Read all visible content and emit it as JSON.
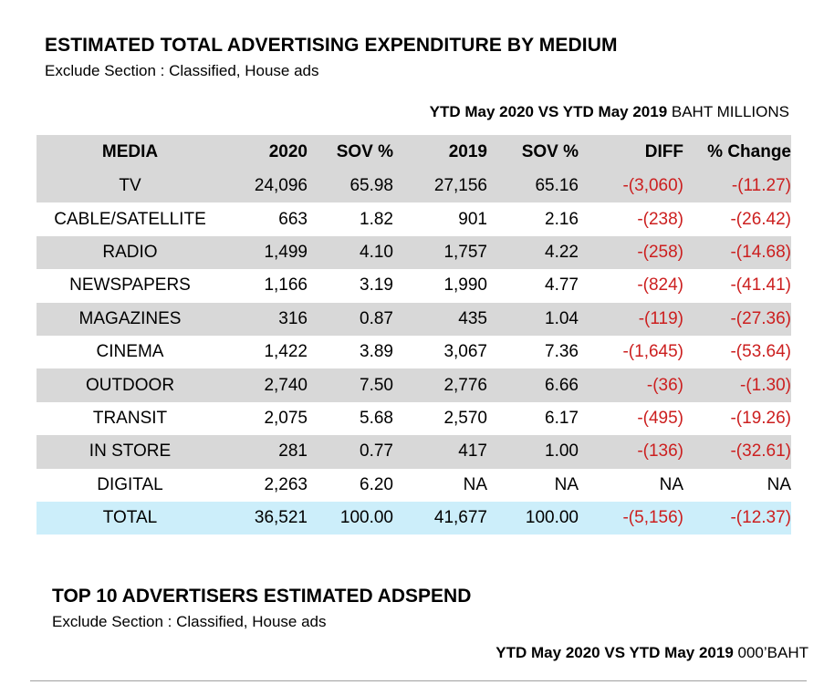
{
  "section1": {
    "title": "ESTIMATED TOTAL ADVERTISING EXPENDITURE BY MEDIUM",
    "subtitle": "Exclude Section : Classified, House ads",
    "period_bold": "YTD May 2020 VS YTD May 2019",
    "period_unit": " BAHT MILLIONS",
    "headers": [
      "MEDIA",
      "2020",
      "SOV %",
      "2019",
      "SOV %",
      "DIFF",
      "% Change"
    ],
    "rows": [
      {
        "media": "TV",
        "v2020": "24,096",
        "sov2020": "65.98",
        "v2019": "27,156",
        "sov2019": "65.16",
        "diff": "-(3,060)",
        "pct": "-(11.27)"
      },
      {
        "media": "CABLE/SATELLITE",
        "v2020": "663",
        "sov2020": "1.82",
        "v2019": "901",
        "sov2019": "2.16",
        "diff": "-(238)",
        "pct": "-(26.42)"
      },
      {
        "media": "RADIO",
        "v2020": "1,499",
        "sov2020": "4.10",
        "v2019": "1,757",
        "sov2019": "4.22",
        "diff": "-(258)",
        "pct": "-(14.68)"
      },
      {
        "media": "NEWSPAPERS",
        "v2020": "1,166",
        "sov2020": "3.19",
        "v2019": "1,990",
        "sov2019": "4.77",
        "diff": "-(824)",
        "pct": "-(41.41)"
      },
      {
        "media": "MAGAZINES",
        "v2020": "316",
        "sov2020": "0.87",
        "v2019": "435",
        "sov2019": "1.04",
        "diff": "-(119)",
        "pct": "-(27.36)"
      },
      {
        "media": "CINEMA",
        "v2020": "1,422",
        "sov2020": "3.89",
        "v2019": "3,067",
        "sov2019": "7.36",
        "diff": "-(1,645)",
        "pct": "-(53.64)"
      },
      {
        "media": "OUTDOOR",
        "v2020": "2,740",
        "sov2020": "7.50",
        "v2019": "2,776",
        "sov2019": "6.66",
        "diff": "-(36)",
        "pct": "-(1.30)"
      },
      {
        "media": "TRANSIT",
        "v2020": "2,075",
        "sov2020": "5.68",
        "v2019": "2,570",
        "sov2019": "6.17",
        "diff": "-(495)",
        "pct": "-(19.26)"
      },
      {
        "media": "IN STORE",
        "v2020": "281",
        "sov2020": "0.77",
        "v2019": "417",
        "sov2019": "1.00",
        "diff": "-(136)",
        "pct": "-(32.61)"
      },
      {
        "media": "DIGITAL",
        "v2020": "2,263",
        "sov2020": "6.20",
        "v2019": "NA",
        "sov2019": "NA",
        "diff": "NA",
        "pct": "NA"
      }
    ],
    "total": {
      "media": "TOTAL",
      "v2020": "36,521",
      "sov2020": "100.00",
      "v2019": "41,677",
      "sov2019": "100.00",
      "diff": "-(5,156)",
      "pct": "-(12.37)"
    },
    "colors": {
      "shade": "#d8d8d8",
      "total": "#cceefa",
      "negative": "#cc1f1f"
    }
  },
  "section2": {
    "title": "TOP 10 ADVERTISERS  ESTIMATED ADSPEND",
    "subtitle": "Exclude Section : Classified, House ads",
    "period_bold": "YTD May 2020 VS YTD May 2019",
    "period_unit": " 000’BAHT"
  }
}
